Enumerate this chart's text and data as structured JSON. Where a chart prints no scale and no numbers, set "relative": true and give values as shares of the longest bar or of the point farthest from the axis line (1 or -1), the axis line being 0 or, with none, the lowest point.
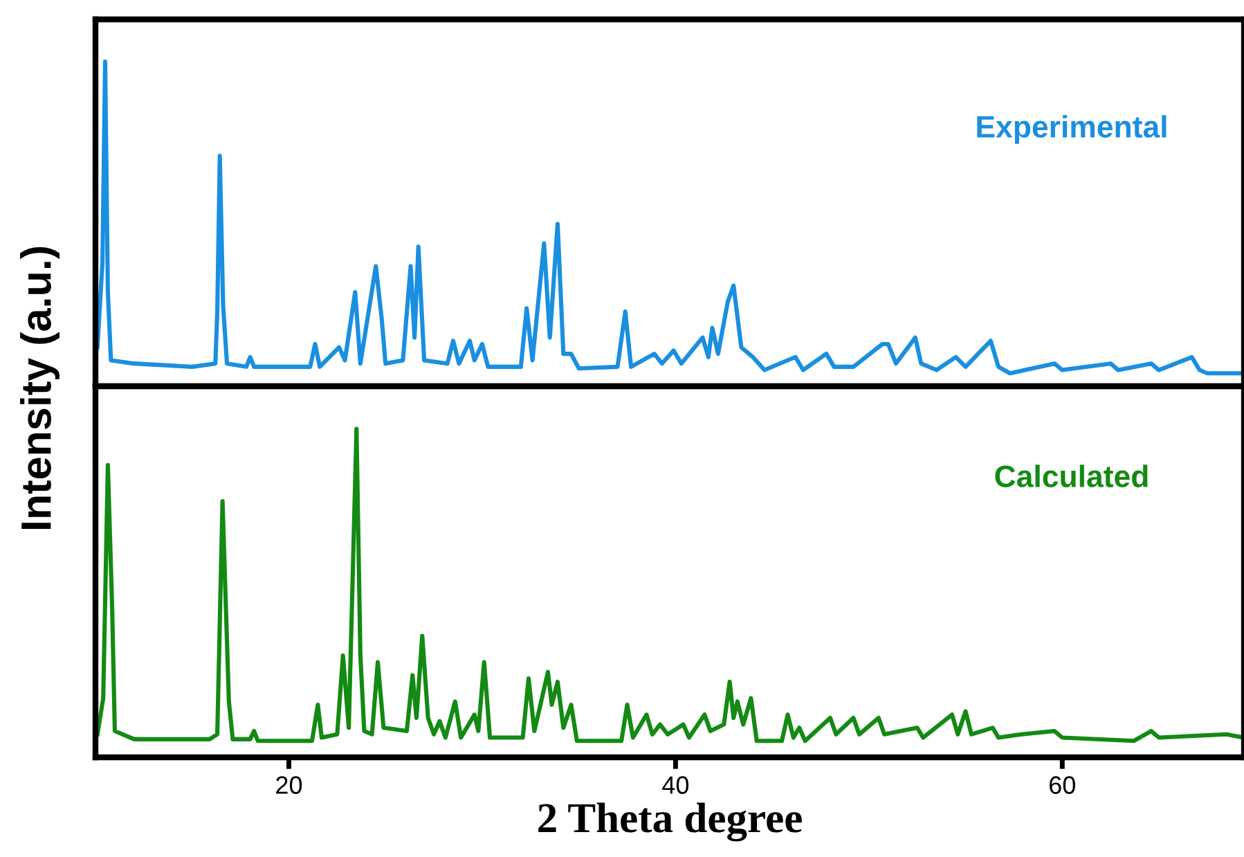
{
  "chart_data": [
    {
      "type": "line",
      "relative": true,
      "xlim": [
        10,
        69.4
      ],
      "tick_labels": false,
      "ylabel": "Intensity (a.u.)",
      "series": [
        {
          "name": "Experimental",
          "color": "#1a8fe0",
          "x": [
            10.1,
            10.36,
            10.5,
            10.64,
            10.8,
            12,
            15,
            16.2,
            16.3,
            16.43,
            16.6,
            16.8,
            17.8,
            18,
            18.2,
            21.1,
            21.36,
            21.6,
            22.6,
            22.9,
            23.43,
            23.7,
            24.5,
            24.8,
            25,
            25.9,
            26.3,
            26.5,
            26.7,
            27,
            28.2,
            28.5,
            28.8,
            29.36,
            29.6,
            30,
            30.3,
            32,
            32.3,
            32.6,
            33.2,
            33.5,
            33.9,
            34.2,
            34.6,
            35,
            37,
            37.4,
            37.7,
            38.9,
            39.3,
            39.9,
            40.3,
            41.4,
            41.7,
            41.9,
            42.2,
            42.7,
            43.0,
            43.4,
            44,
            44.6,
            46.2,
            46.6,
            47.8,
            48.2,
            49.2,
            50.7,
            51,
            51.4,
            52.4,
            52.7,
            53.5,
            54.5,
            55,
            56.3,
            56.7,
            57.3,
            59.6,
            60,
            62.5,
            62.9,
            64.6,
            65,
            66.7,
            67.1,
            67.5,
            69.4
          ],
          "values": [
            0.12,
            0.38,
            1.0,
            0.29,
            0.08,
            0.07,
            0.06,
            0.07,
            0.23,
            0.71,
            0.25,
            0.07,
            0.06,
            0.09,
            0.06,
            0.06,
            0.13,
            0.06,
            0.12,
            0.08,
            0.29,
            0.07,
            0.37,
            0.21,
            0.07,
            0.08,
            0.37,
            0.15,
            0.43,
            0.08,
            0.07,
            0.14,
            0.07,
            0.14,
            0.08,
            0.13,
            0.06,
            0.06,
            0.24,
            0.08,
            0.44,
            0.15,
            0.5,
            0.1,
            0.1,
            0.055,
            0.06,
            0.23,
            0.06,
            0.1,
            0.07,
            0.11,
            0.07,
            0.15,
            0.09,
            0.18,
            0.1,
            0.26,
            0.31,
            0.12,
            0.09,
            0.05,
            0.09,
            0.05,
            0.1,
            0.06,
            0.06,
            0.13,
            0.13,
            0.07,
            0.15,
            0.07,
            0.05,
            0.09,
            0.06,
            0.14,
            0.06,
            0.04,
            0.07,
            0.05,
            0.07,
            0.05,
            0.07,
            0.05,
            0.09,
            0.05,
            0.04,
            0.04
          ]
        }
      ]
    },
    {
      "type": "line",
      "relative": true,
      "xlim": [
        10,
        69.4
      ],
      "xticks": [
        20,
        40,
        60
      ],
      "tick_labels": "x",
      "xlabel": "2 Theta degree",
      "series": [
        {
          "name": "Calculated",
          "color": "#138a13",
          "x": [
            10.1,
            10.4,
            10.64,
            10.86,
            11,
            12,
            15.9,
            16.3,
            16.57,
            16.9,
            17.1,
            18,
            18.2,
            18.4,
            21.2,
            21.5,
            21.7,
            22.5,
            22.8,
            23.1,
            23.5,
            23.7,
            23.9,
            24.3,
            24.6,
            24.9,
            26.1,
            26.4,
            26.6,
            26.9,
            27.2,
            27.5,
            27.8,
            28.1,
            28.6,
            28.9,
            29.6,
            29.8,
            30.1,
            30.4,
            32.1,
            32.4,
            32.7,
            33.4,
            33.6,
            33.9,
            34.2,
            34.6,
            34.9,
            37.2,
            37.5,
            37.8,
            38.5,
            38.8,
            39.2,
            39.6,
            40.4,
            40.7,
            41.5,
            41.8,
            42.5,
            42.8,
            43.0,
            43.2,
            43.5,
            43.9,
            44.2,
            45.5,
            45.8,
            46.1,
            46.4,
            46.7,
            48,
            48.3,
            49.2,
            49.5,
            50.5,
            50.8,
            52.5,
            52.8,
            54.3,
            54.6,
            55,
            55.3,
            56.4,
            56.7,
            57.9,
            59.6,
            60,
            63.7,
            64.6,
            65,
            68.5,
            69.4
          ],
          "values": [
            0.07,
            0.18,
            0.89,
            0.46,
            0.08,
            0.055,
            0.055,
            0.07,
            0.78,
            0.17,
            0.055,
            0.055,
            0.08,
            0.05,
            0.05,
            0.16,
            0.06,
            0.07,
            0.31,
            0.09,
            1.0,
            0.31,
            0.08,
            0.07,
            0.29,
            0.09,
            0.08,
            0.25,
            0.12,
            0.37,
            0.12,
            0.07,
            0.11,
            0.06,
            0.17,
            0.06,
            0.13,
            0.08,
            0.29,
            0.06,
            0.06,
            0.24,
            0.08,
            0.26,
            0.16,
            0.23,
            0.09,
            0.16,
            0.05,
            0.05,
            0.16,
            0.06,
            0.13,
            0.07,
            0.1,
            0.07,
            0.1,
            0.06,
            0.13,
            0.08,
            0.1,
            0.23,
            0.12,
            0.17,
            0.1,
            0.18,
            0.05,
            0.05,
            0.13,
            0.06,
            0.09,
            0.05,
            0.12,
            0.07,
            0.12,
            0.07,
            0.12,
            0.07,
            0.09,
            0.06,
            0.13,
            0.07,
            0.14,
            0.07,
            0.09,
            0.06,
            0.07,
            0.08,
            0.06,
            0.05,
            0.08,
            0.06,
            0.07,
            0.06
          ]
        }
      ]
    }
  ]
}
